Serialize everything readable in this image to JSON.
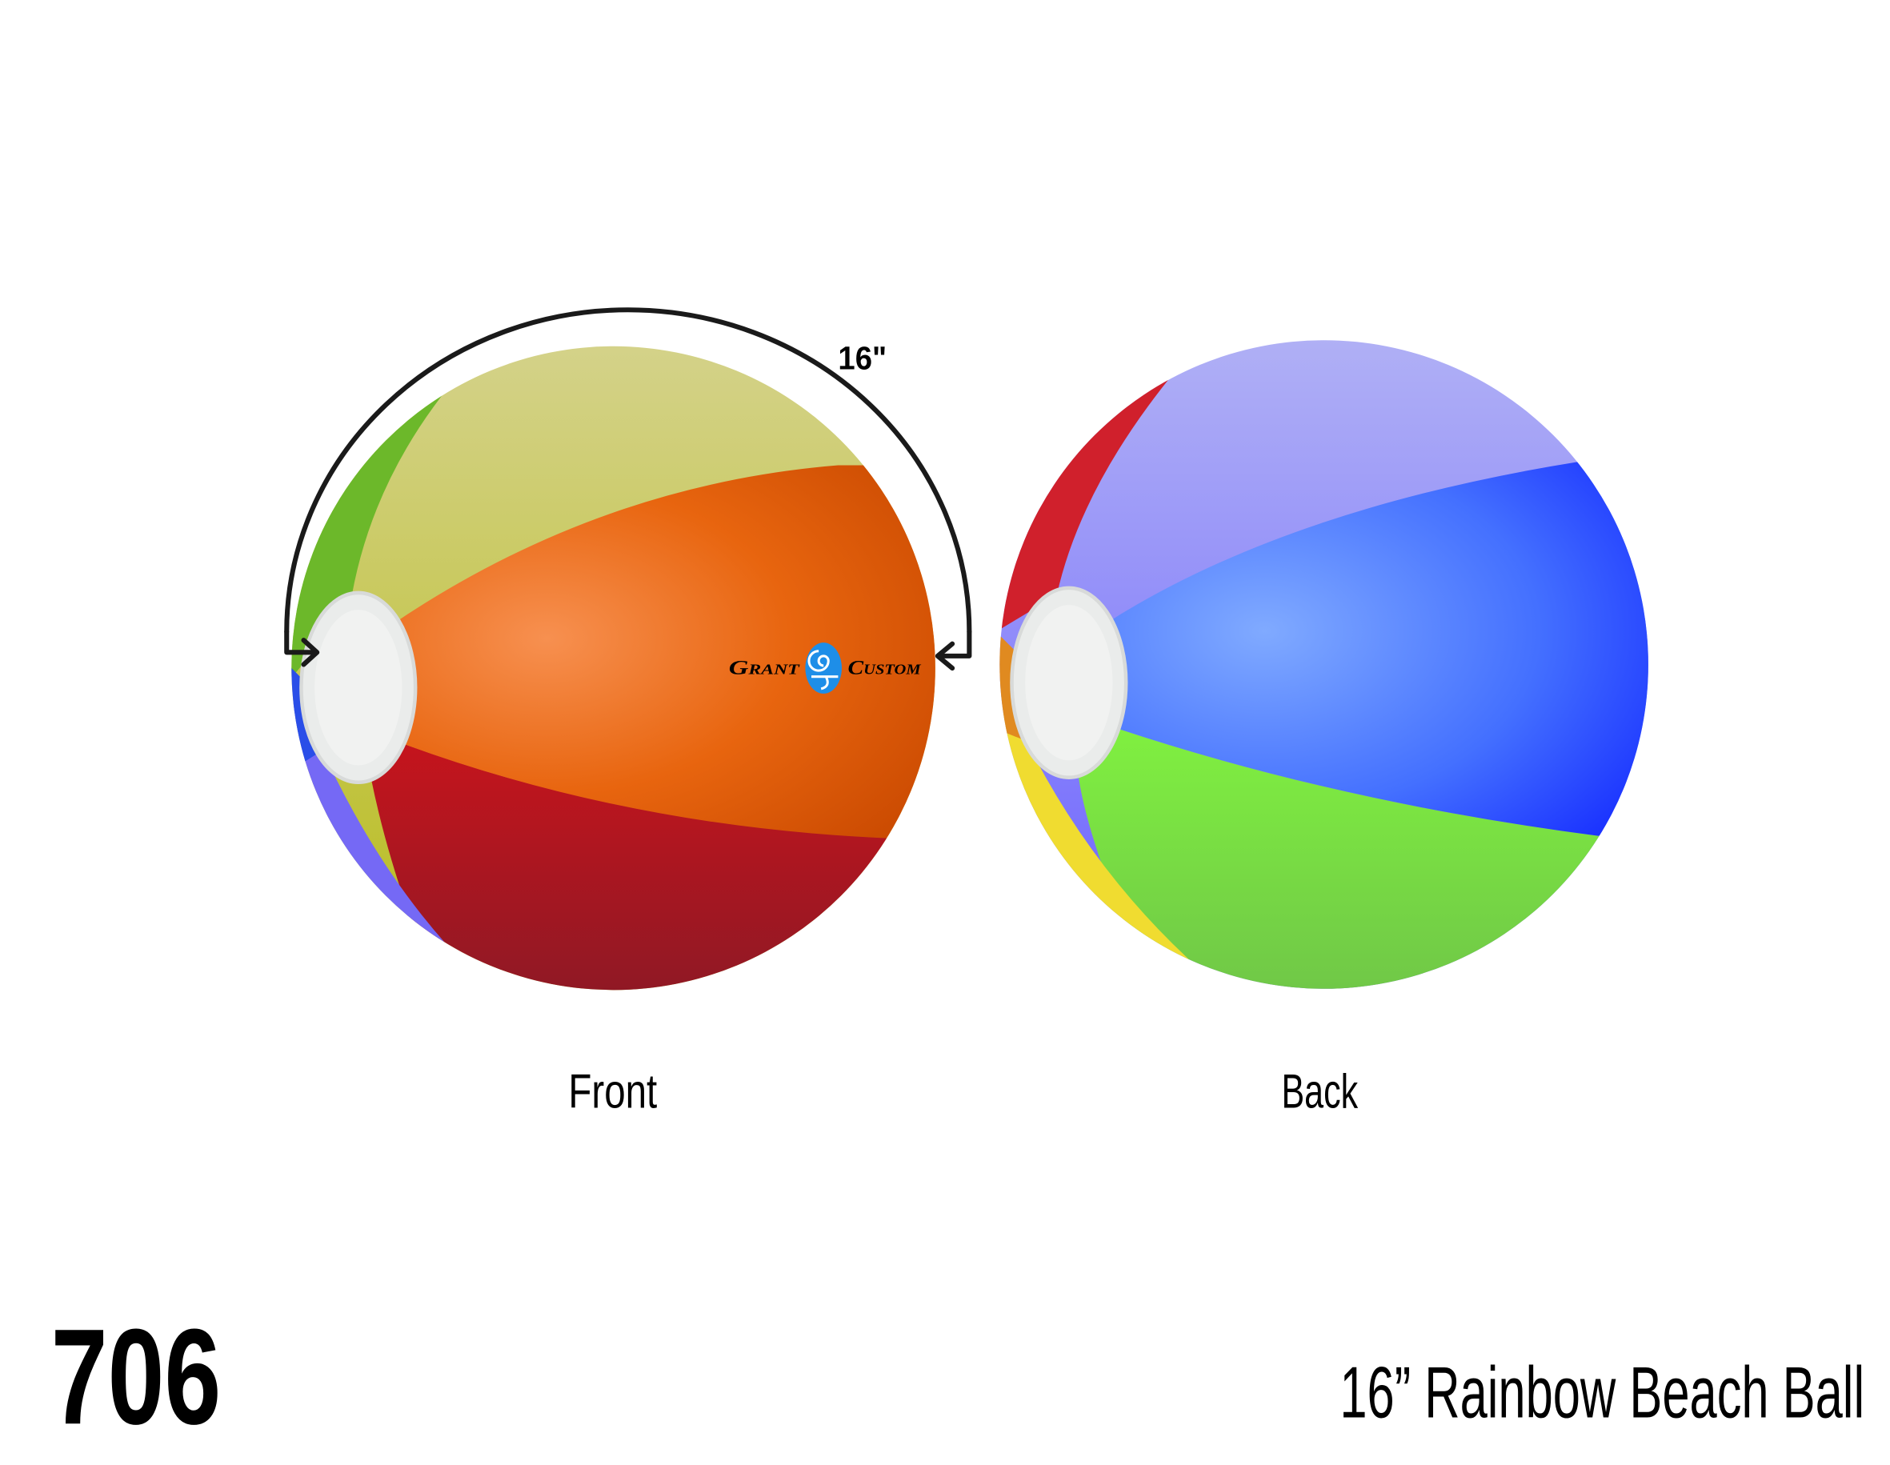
{
  "product": {
    "number": "706",
    "title": "16” Rainbow Beach Ball",
    "dimension_label": "16\"",
    "views": {
      "front": "Front",
      "back": "Back"
    },
    "logo": {
      "left_word": "Grant",
      "right_word": "Custom"
    }
  },
  "colors": {
    "orange": "#e8650f",
    "yellow": "#c4c23a",
    "red": "#b3121c",
    "green": "#6cc92e",
    "blue": "#3f6cff",
    "purple": "#7569f5",
    "logo_blue": "#1e8ee8"
  }
}
